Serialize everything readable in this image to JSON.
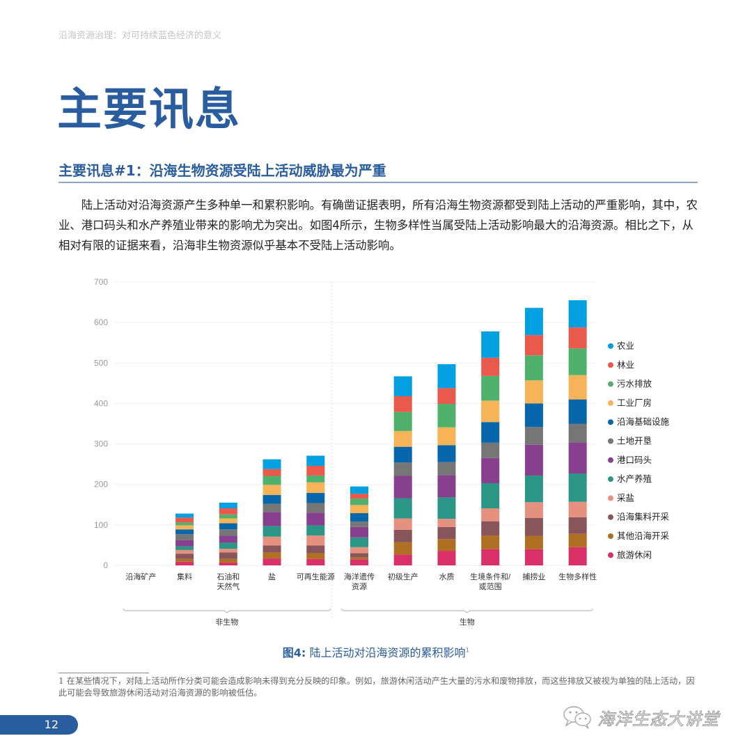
{
  "header": {
    "running_title": "沿海资源治理：对可持续蓝色经济的意义"
  },
  "page_title": "主要讯息",
  "section": {
    "title": "主要讯息#1：沿海生物资源受陆上活动威胁最为严重",
    "body": "陆上活动对沿海资源产生多种单一和累积影响。有确凿证据表明，所有沿海生物资源都受到陆上活动的严重影响，其中，农业、港口码头和水产养殖业带来的影响尤为突出。如图4所示，生物多样性当属受陆上活动影响最大的沿海资源。相比之下，从相对有限的证据来看，沿海非生物资源似乎基本不受陆上活动影响。"
  },
  "figure": {
    "label": "图4:",
    "title": "陆上活动对沿海资源的累积影响",
    "footnote_ref": "1"
  },
  "footnote": {
    "text": "1 在某些情况下，对陆上活动所作分类可能会造成影响未得到充分反映的印象。例如，旅游休闲活动产生大量的污水和废物排放，而这些排放又被视为单独的陆上活动，因此可能会导致旅游休闲活动对沿海资源的影响被低估。"
  },
  "page_number": "12",
  "watermark": {
    "text": "海洋生态大讲堂",
    "icon": "wechat-icon"
  },
  "chart_data": {
    "type": "bar",
    "stacked": true,
    "title": "",
    "xlabel": "",
    "ylabel": "",
    "ylim": [
      0,
      700
    ],
    "yticks": [
      0,
      100,
      200,
      300,
      400,
      500,
      600,
      700
    ],
    "grid": true,
    "legend_position": "right",
    "categories": [
      "沿海矿产",
      "集料",
      "石油和\n天然气",
      "盐",
      "可再生能源",
      "海洋遗传\n资源",
      "初级生产",
      "水质",
      "生境条件和/\n或范围",
      "捕捞业",
      "生物多样性"
    ],
    "groups": [
      {
        "label": "非生物",
        "from": 0,
        "to": 4
      },
      {
        "label": "生物",
        "from": 5,
        "to": 10
      }
    ],
    "series": [
      {
        "name": "旅游休闲",
        "color": "#d93068",
        "values": [
          0,
          9,
          7,
          17,
          16,
          15,
          27,
          36,
          40,
          40,
          45
        ]
      },
      {
        "name": "其他沿海开采",
        "color": "#b07024",
        "values": [
          0,
          7,
          9,
          15,
          14,
          5,
          30,
          29,
          34,
          33,
          33
        ]
      },
      {
        "name": "沿海集料开采",
        "color": "#88555a",
        "values": [
          0,
          13,
          16,
          17,
          19,
          10,
          31,
          30,
          35,
          44,
          41
        ]
      },
      {
        "name": "采盐",
        "color": "#e69080",
        "values": [
          0,
          9,
          9,
          22,
          25,
          15,
          28,
          20,
          32,
          39,
          38
        ]
      },
      {
        "name": "水产养殖",
        "color": "#2b9686",
        "values": [
          0,
          9,
          15,
          26,
          25,
          24,
          50,
          53,
          62,
          66,
          70
        ]
      },
      {
        "name": "港口码头",
        "color": "#86408e",
        "values": [
          0,
          15,
          17,
          35,
          31,
          26,
          55,
          55,
          62,
          76,
          77
        ]
      },
      {
        "name": "土地开垦",
        "color": "#767676",
        "values": [
          0,
          15,
          16,
          20,
          24,
          13,
          33,
          32,
          38,
          44,
          46
        ]
      },
      {
        "name": "沿海基础设施",
        "color": "#0866ab",
        "values": [
          0,
          12,
          15,
          22,
          25,
          21,
          39,
          42,
          51,
          58,
          60
        ]
      },
      {
        "name": "工业厂房",
        "color": "#f6b358",
        "values": [
          0,
          10,
          12,
          25,
          26,
          20,
          39,
          44,
          53,
          57,
          60
        ]
      },
      {
        "name": "污水排放",
        "color": "#50b16d",
        "values": [
          0,
          7,
          10,
          22,
          17,
          16,
          47,
          58,
          61,
          62,
          66
        ]
      },
      {
        "name": "林业",
        "color": "#e95a4c",
        "values": [
          0,
          12,
          15,
          17,
          24,
          12,
          39,
          39,
          45,
          50,
          52
        ]
      },
      {
        "name": "农业",
        "color": "#02a0e0",
        "values": [
          0,
          10,
          14,
          24,
          25,
          18,
          49,
          59,
          65,
          67,
          67
        ]
      }
    ],
    "legend_order": [
      "农业",
      "林业",
      "污水排放",
      "工业厂房",
      "沿海基础设施",
      "土地开垦",
      "港口码头",
      "水产养殖",
      "采盐",
      "沿海集料开采",
      "其他沿海开采",
      "旅游休闲"
    ]
  }
}
